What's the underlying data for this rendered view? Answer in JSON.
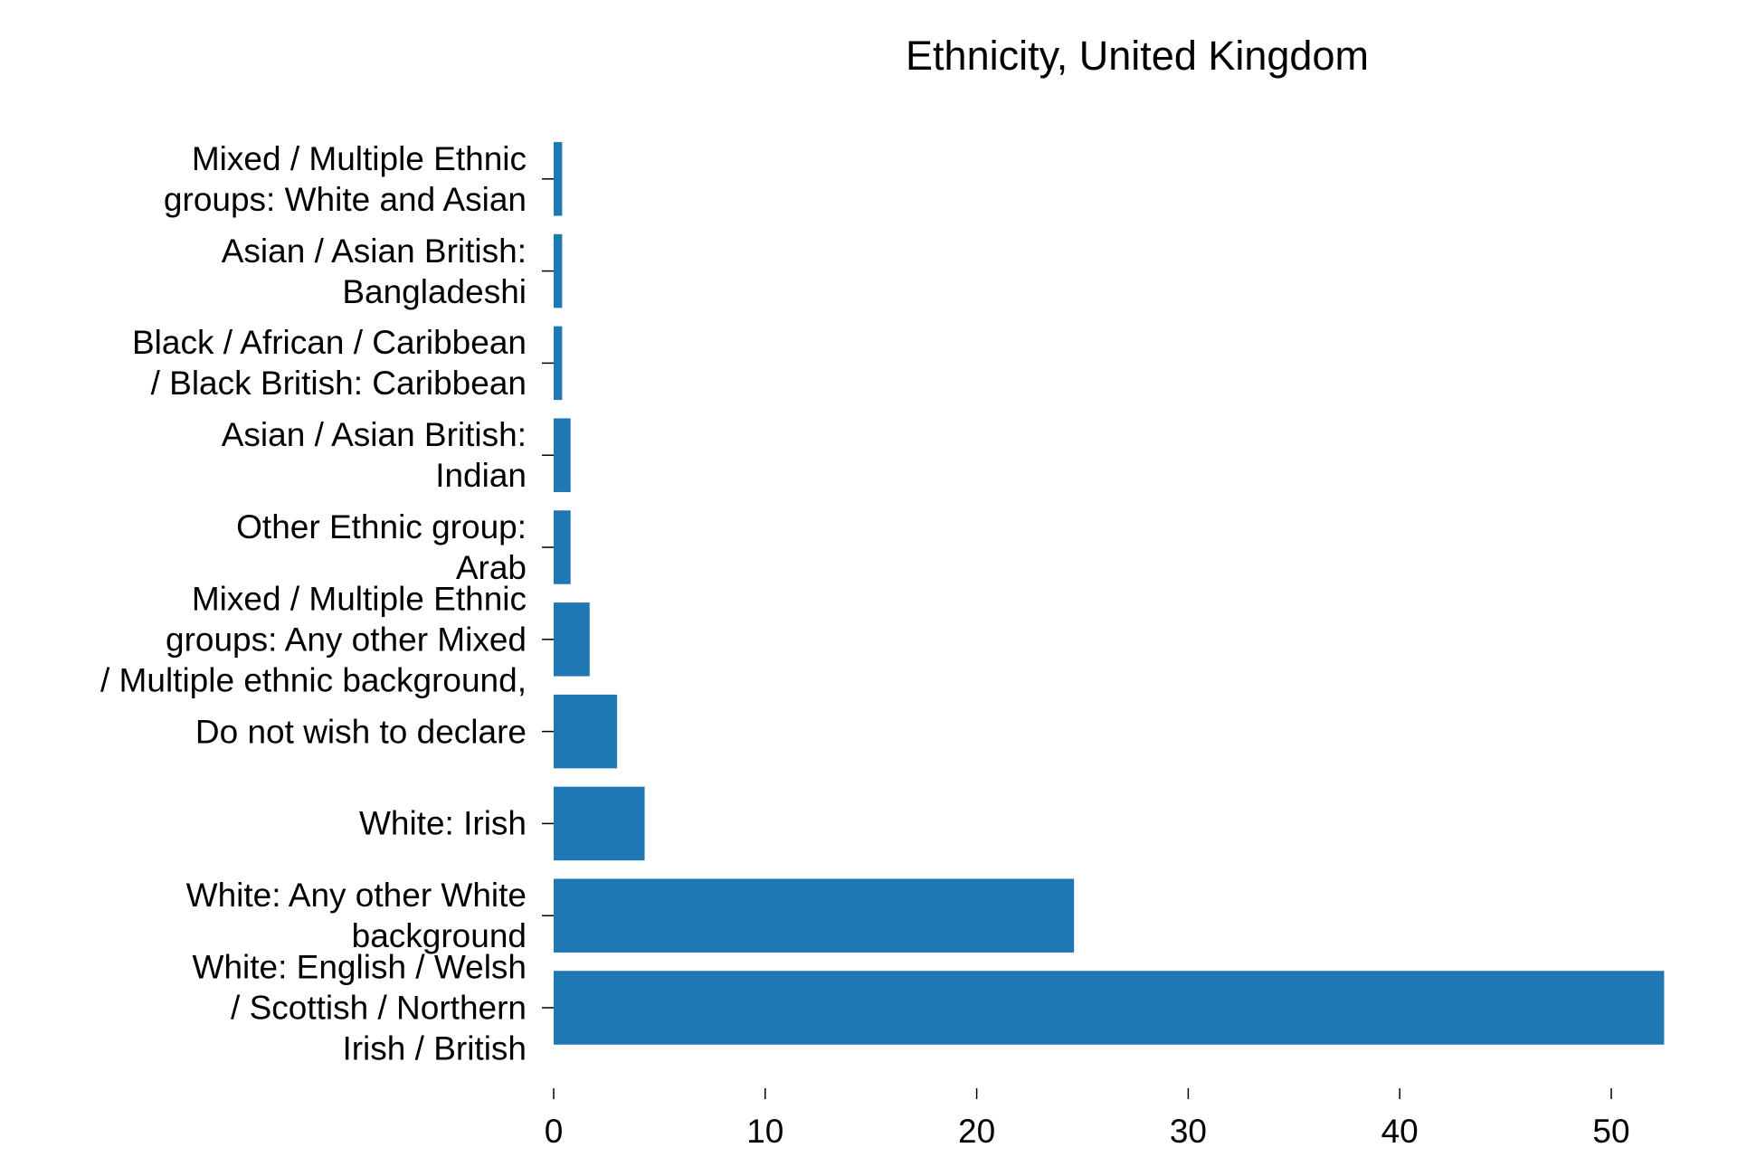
{
  "chart_data": {
    "type": "barh",
    "title": "Ethnicity, United Kingdom",
    "categories": [
      "White: English / Welsh\n/ Scottish / Northern\nIrish / British",
      "White: Any other White\nbackground",
      "White: Irish",
      "Do not wish to declare",
      "Mixed / Multiple Ethnic\ngroups: Any other Mixed\n/ Multiple ethnic background,",
      "Other Ethnic group:\nArab",
      "Asian / Asian British:\nIndian",
      "Black / African / Caribbean\n/ Black British: Caribbean",
      "Asian / Asian British:\nBangladeshi",
      "Mixed / Multiple Ethnic\ngroups: White and Asian"
    ],
    "values": [
      52.5,
      24.6,
      4.3,
      3.0,
      1.7,
      0.8,
      0.8,
      0.4,
      0.4,
      0.4
    ],
    "color": "#1f77b4",
    "xlim": [
      0,
      55
    ],
    "xticks": [
      0,
      10,
      20,
      30,
      40,
      50
    ]
  }
}
